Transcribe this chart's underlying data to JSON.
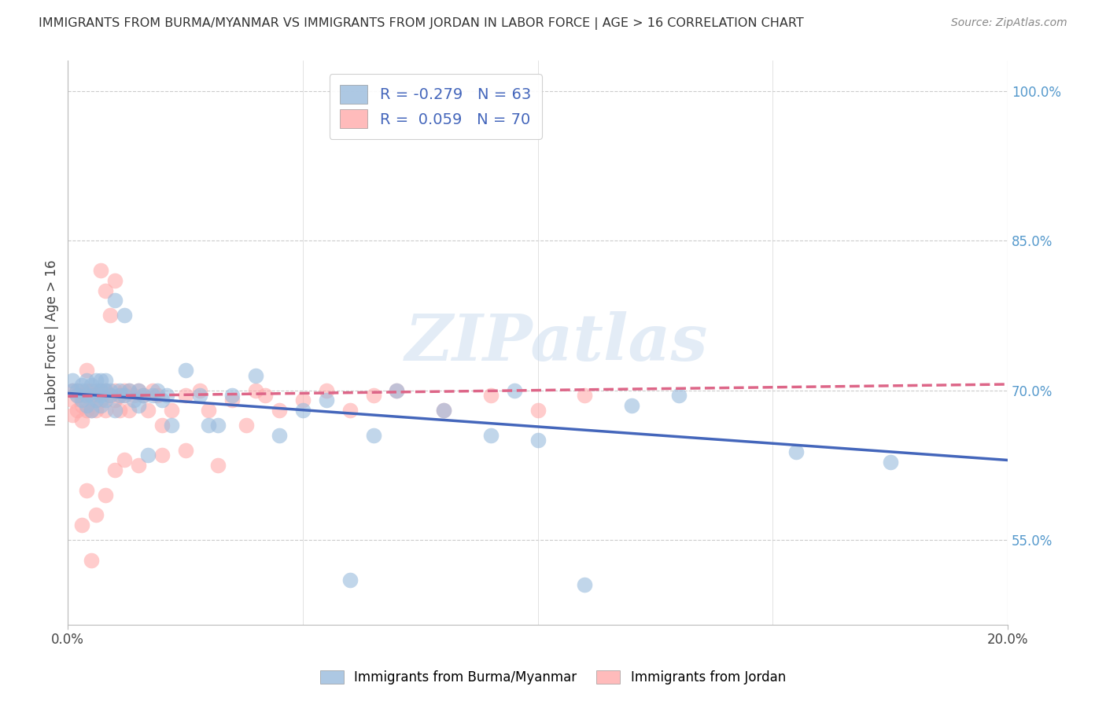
{
  "title": "IMMIGRANTS FROM BURMA/MYANMAR VS IMMIGRANTS FROM JORDAN IN LABOR FORCE | AGE > 16 CORRELATION CHART",
  "source": "Source: ZipAtlas.com",
  "ylabel": "In Labor Force | Age > 16",
  "ytick_labels": [
    "55.0%",
    "70.0%",
    "85.0%",
    "100.0%"
  ],
  "ytick_values": [
    0.55,
    0.7,
    0.85,
    1.0
  ],
  "xlim": [
    0.0,
    0.2
  ],
  "ylim": [
    0.465,
    1.03
  ],
  "legend_blue_r": "-0.279",
  "legend_blue_n": "63",
  "legend_pink_r": "0.059",
  "legend_pink_n": "70",
  "legend_blue_label": "Immigrants from Burma/Myanmar",
  "legend_pink_label": "Immigrants from Jordan",
  "watermark": "ZIPatlas",
  "blue_color": "#99BBDD",
  "pink_color": "#FFAAAA",
  "blue_line_color": "#4466BB",
  "pink_line_color": "#DD6688",
  "blue_scatter_x": [
    0.001,
    0.001,
    0.002,
    0.002,
    0.003,
    0.003,
    0.003,
    0.004,
    0.004,
    0.004,
    0.005,
    0.005,
    0.005,
    0.006,
    0.006,
    0.006,
    0.007,
    0.007,
    0.007,
    0.007,
    0.008,
    0.008,
    0.008,
    0.009,
    0.009,
    0.01,
    0.01,
    0.011,
    0.011,
    0.012,
    0.012,
    0.013,
    0.014,
    0.015,
    0.015,
    0.016,
    0.017,
    0.018,
    0.019,
    0.02,
    0.021,
    0.022,
    0.025,
    0.028,
    0.03,
    0.032,
    0.035,
    0.04,
    0.045,
    0.05,
    0.055,
    0.06,
    0.065,
    0.07,
    0.08,
    0.09,
    0.095,
    0.1,
    0.11,
    0.12,
    0.13,
    0.155,
    0.175
  ],
  "blue_scatter_y": [
    0.7,
    0.71,
    0.695,
    0.7,
    0.69,
    0.7,
    0.705,
    0.685,
    0.695,
    0.71,
    0.68,
    0.695,
    0.705,
    0.69,
    0.7,
    0.71,
    0.685,
    0.695,
    0.7,
    0.71,
    0.69,
    0.7,
    0.71,
    0.695,
    0.7,
    0.68,
    0.79,
    0.695,
    0.7,
    0.775,
    0.695,
    0.7,
    0.69,
    0.685,
    0.7,
    0.695,
    0.635,
    0.695,
    0.7,
    0.69,
    0.695,
    0.665,
    0.72,
    0.695,
    0.665,
    0.665,
    0.695,
    0.715,
    0.655,
    0.68,
    0.69,
    0.51,
    0.655,
    0.7,
    0.68,
    0.655,
    0.7,
    0.65,
    0.505,
    0.685,
    0.695,
    0.638,
    0.628
  ],
  "pink_scatter_x": [
    0.001,
    0.001,
    0.001,
    0.002,
    0.002,
    0.002,
    0.003,
    0.003,
    0.003,
    0.004,
    0.004,
    0.004,
    0.005,
    0.005,
    0.005,
    0.006,
    0.006,
    0.007,
    0.007,
    0.007,
    0.008,
    0.008,
    0.008,
    0.009,
    0.009,
    0.01,
    0.01,
    0.01,
    0.011,
    0.011,
    0.012,
    0.012,
    0.013,
    0.013,
    0.014,
    0.015,
    0.016,
    0.017,
    0.018,
    0.019,
    0.02,
    0.022,
    0.025,
    0.028,
    0.03,
    0.032,
    0.035,
    0.038,
    0.04,
    0.042,
    0.045,
    0.05,
    0.055,
    0.06,
    0.065,
    0.07,
    0.08,
    0.09,
    0.1,
    0.11,
    0.003,
    0.004,
    0.005,
    0.006,
    0.008,
    0.01,
    0.012,
    0.015,
    0.02,
    0.025
  ],
  "pink_scatter_y": [
    0.7,
    0.69,
    0.675,
    0.695,
    0.68,
    0.7,
    0.685,
    0.695,
    0.67,
    0.68,
    0.7,
    0.72,
    0.695,
    0.68,
    0.7,
    0.695,
    0.68,
    0.7,
    0.69,
    0.82,
    0.68,
    0.7,
    0.8,
    0.695,
    0.775,
    0.7,
    0.69,
    0.81,
    0.695,
    0.68,
    0.7,
    0.695,
    0.68,
    0.7,
    0.695,
    0.7,
    0.695,
    0.68,
    0.7,
    0.695,
    0.665,
    0.68,
    0.695,
    0.7,
    0.68,
    0.625,
    0.69,
    0.665,
    0.7,
    0.695,
    0.68,
    0.69,
    0.7,
    0.68,
    0.695,
    0.7,
    0.68,
    0.695,
    0.68,
    0.695,
    0.565,
    0.6,
    0.53,
    0.575,
    0.595,
    0.62,
    0.63,
    0.625,
    0.635,
    0.64
  ]
}
